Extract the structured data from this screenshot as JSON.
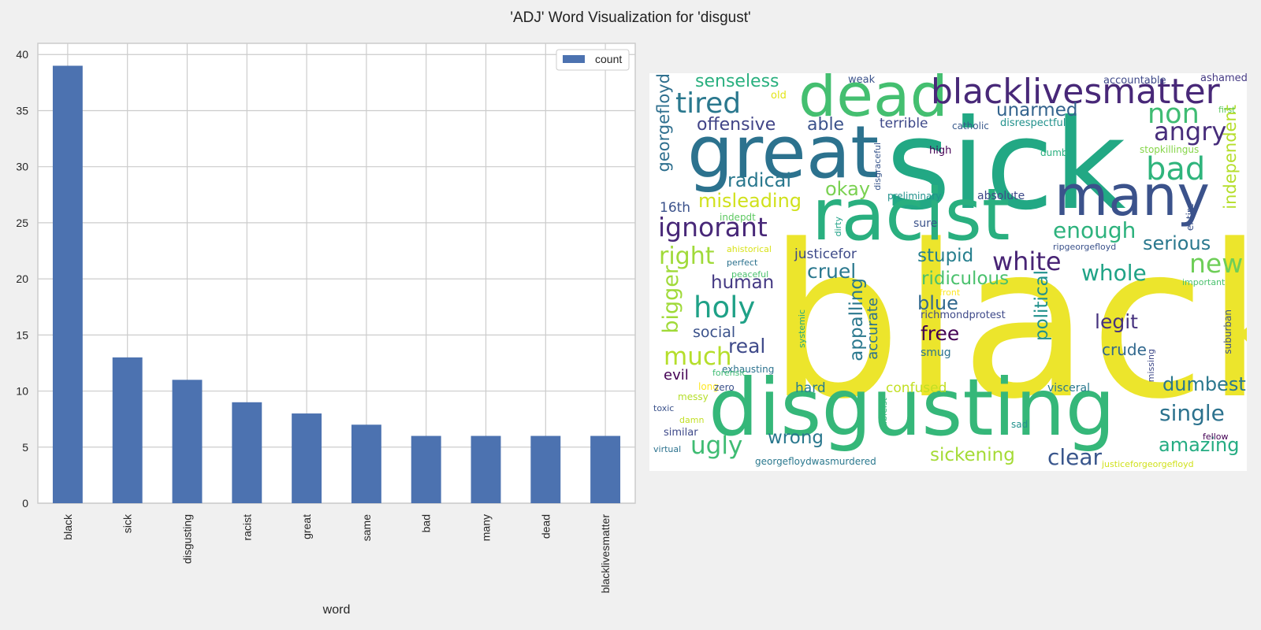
{
  "figure": {
    "title": "'ADJ' Word Visualization for 'disgust'"
  },
  "chart_data": [
    {
      "type": "bar",
      "categories": [
        "black",
        "sick",
        "disgusting",
        "racist",
        "great",
        "same",
        "bad",
        "many",
        "dead",
        "blacklivesmatter"
      ],
      "series": [
        {
          "name": "count",
          "values": [
            39,
            13,
            11,
            9,
            8,
            7,
            6,
            6,
            6,
            6
          ]
        }
      ],
      "xlabel": "word",
      "ylabel": "",
      "ylim": [
        0,
        41
      ],
      "yticks": [
        0,
        5,
        10,
        15,
        20,
        25,
        30,
        35,
        40
      ],
      "bar_color": "#4c72b0",
      "grid": true,
      "legend": "top-right"
    },
    {
      "type": "word-cloud",
      "palette": "viridis",
      "words": [
        {
          "text": "black",
          "color": "#ece52c"
        },
        {
          "text": "sick",
          "color": "#22a884"
        },
        {
          "text": "disgusting",
          "color": "#35b779"
        },
        {
          "text": "racist",
          "color": "#29af7f"
        },
        {
          "text": "great",
          "color": "#2c728e"
        },
        {
          "text": "many",
          "color": "#3b528b"
        },
        {
          "text": "dead",
          "color": "#44bf70"
        },
        {
          "text": "blacklivesmatter",
          "color": "#482878"
        },
        {
          "text": "tired",
          "color": "#2a788e"
        },
        {
          "text": "senseless",
          "color": "#2ab07f"
        },
        {
          "text": "unarmed",
          "color": "#33638d"
        },
        {
          "text": "non",
          "color": "#3fbc73"
        },
        {
          "text": "angry",
          "color": "#472d7b"
        },
        {
          "text": "bad",
          "color": "#2fb47c"
        },
        {
          "text": "offensive",
          "color": "#414487"
        },
        {
          "text": "able",
          "color": "#3b528b"
        },
        {
          "text": "terrible",
          "color": "#3e4989"
        },
        {
          "text": "catholic",
          "color": "#38598c"
        },
        {
          "text": "disrespectful",
          "color": "#21918c"
        },
        {
          "text": "georgefloyd",
          "color": "#2e6f8e"
        },
        {
          "text": "independent",
          "color": "#b5de2b"
        },
        {
          "text": "radical",
          "color": "#2a788e"
        },
        {
          "text": "okay",
          "color": "#7ad151"
        },
        {
          "text": "misleading",
          "color": "#d0e11c"
        },
        {
          "text": "16th",
          "color": "#3b528b"
        },
        {
          "text": "ignorant",
          "color": "#482878"
        },
        {
          "text": "enough",
          "color": "#2db27d"
        },
        {
          "text": "serious",
          "color": "#2a788e"
        },
        {
          "text": "new",
          "color": "#6ece58"
        },
        {
          "text": "right",
          "color": "#a0da39"
        },
        {
          "text": "stupid",
          "color": "#277f8e"
        },
        {
          "text": "white",
          "color": "#482475"
        },
        {
          "text": "whole",
          "color": "#20a386"
        },
        {
          "text": "justicefor",
          "color": "#3e4a89"
        },
        {
          "text": "bigger",
          "color": "#a0da39"
        },
        {
          "text": "human",
          "color": "#443983"
        },
        {
          "text": "cruel",
          "color": "#2a788e"
        },
        {
          "text": "ridiculous",
          "color": "#4ac16d"
        },
        {
          "text": "holy",
          "color": "#1fa187"
        },
        {
          "text": "blue",
          "color": "#31688e"
        },
        {
          "text": "appalling",
          "color": "#2a788e"
        },
        {
          "text": "political",
          "color": "#21918c"
        },
        {
          "text": "legit",
          "color": "#46327e"
        },
        {
          "text": "social",
          "color": "#3b528b"
        },
        {
          "text": "real",
          "color": "#3e4989"
        },
        {
          "text": "free",
          "color": "#440154"
        },
        {
          "text": "accurate",
          "color": "#2c728e"
        },
        {
          "text": "crude",
          "color": "#31688e"
        },
        {
          "text": "much",
          "color": "#b5de2b"
        },
        {
          "text": "smug",
          "color": "#2c728e"
        },
        {
          "text": "evil",
          "color": "#440154"
        },
        {
          "text": "exhausting",
          "color": "#2c728e"
        },
        {
          "text": "hard",
          "color": "#287c8e"
        },
        {
          "text": "confused",
          "color": "#c2df23"
        },
        {
          "text": "visceral",
          "color": "#2a788e"
        },
        {
          "text": "dumbest",
          "color": "#2a788e"
        },
        {
          "text": "single",
          "color": "#2c728e"
        },
        {
          "text": "amazing",
          "color": "#25ac82"
        },
        {
          "text": "wrong",
          "color": "#2a788e"
        },
        {
          "text": "ugly",
          "color": "#3fbc73"
        },
        {
          "text": "sickening",
          "color": "#a5db36"
        },
        {
          "text": "clear",
          "color": "#39568c"
        },
        {
          "text": "weak",
          "color": "#3b528b"
        },
        {
          "text": "old",
          "color": "#e2e418"
        },
        {
          "text": "accountable",
          "color": "#3e4989"
        },
        {
          "text": "ashamed",
          "color": "#443983"
        },
        {
          "text": "first",
          "color": "#5ec962"
        },
        {
          "text": "high",
          "color": "#440154"
        },
        {
          "text": "dumb",
          "color": "#2ab07f"
        },
        {
          "text": "stopkillingus",
          "color": "#86d549"
        },
        {
          "text": "disgraceful",
          "color": "#39568c"
        },
        {
          "text": "preliminary",
          "color": "#21918c"
        },
        {
          "text": "absolute",
          "color": "#3e4989"
        },
        {
          "text": "indepdt",
          "color": "#5ec962"
        },
        {
          "text": "sure",
          "color": "#3b528b"
        },
        {
          "text": "entire",
          "color": "#3b528b"
        },
        {
          "text": "dirty",
          "color": "#1fa187"
        },
        {
          "text": "ahistorical",
          "color": "#d8e219"
        },
        {
          "text": "perfect",
          "color": "#2c728e"
        },
        {
          "text": "peaceful",
          "color": "#4ac16d"
        },
        {
          "text": "ripgeorgefloyd",
          "color": "#3b528b"
        },
        {
          "text": "important",
          "color": "#4ac16d"
        },
        {
          "text": "front",
          "color": "#fde725"
        },
        {
          "text": "richmondprotest",
          "color": "#3e4989"
        },
        {
          "text": "systemic",
          "color": "#22a884"
        },
        {
          "text": "suburban",
          "color": "#3b528b"
        },
        {
          "text": "forensic",
          "color": "#3fbc73"
        },
        {
          "text": "missing",
          "color": "#3e4989"
        },
        {
          "text": "long",
          "color": "#fde725"
        },
        {
          "text": "zero",
          "color": "#3b528b"
        },
        {
          "text": "messy",
          "color": "#b5de2b"
        },
        {
          "text": "toxic",
          "color": "#3b528b"
        },
        {
          "text": "damn",
          "color": "#c2df23"
        },
        {
          "text": "similar",
          "color": "#3e4989"
        },
        {
          "text": "ableist",
          "color": "#35b779"
        },
        {
          "text": "sad",
          "color": "#21918c"
        },
        {
          "text": "fellow",
          "color": "#440154"
        },
        {
          "text": "virtual",
          "color": "#2c728e"
        },
        {
          "text": "georgefloydwasmurdered",
          "color": "#2a788e"
        },
        {
          "text": "justiceforgeorgefloyd",
          "color": "#d0e11c"
        }
      ]
    }
  ]
}
